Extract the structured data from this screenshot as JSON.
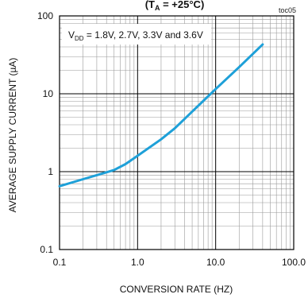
{
  "chart_data": {
    "type": "line",
    "title": "(T",
    "title_subscript": "A",
    "title_rest": " = +25°C)",
    "figure_code": "toc05",
    "annotation": {
      "prefix": "V",
      "subscript": "DD",
      "text": " = 1.8V, 2.7V, 3.3V and 3.6V"
    },
    "xlabel": "CONVERSION RATE (HZ)",
    "ylabel": "AVERAGE SUPPLY CURRENT (µA)",
    "xscale": "log",
    "yscale": "log",
    "xlim": [
      0.1,
      100
    ],
    "ylim": [
      0.1,
      100
    ],
    "x_tick_values": [
      0.1,
      1,
      10,
      100
    ],
    "x_tick_labels": [
      "0.1",
      "1.0",
      "10.0",
      "100.0"
    ],
    "y_tick_values": [
      0.1,
      1,
      10,
      100
    ],
    "y_tick_labels": [
      "0.1",
      "1",
      "10",
      "100"
    ],
    "grid": true,
    "line_color": "#1ea0d8",
    "series": [
      {
        "x": [
          0.1,
          0.2,
          0.3,
          0.4,
          0.5,
          0.7,
          1.0,
          2.0,
          3.0,
          5.0,
          10.0,
          20.0,
          40.0
        ],
        "y": [
          0.65,
          0.8,
          0.9,
          0.98,
          1.05,
          1.25,
          1.6,
          2.6,
          3.6,
          5.9,
          11.5,
          22,
          43
        ]
      }
    ]
  }
}
